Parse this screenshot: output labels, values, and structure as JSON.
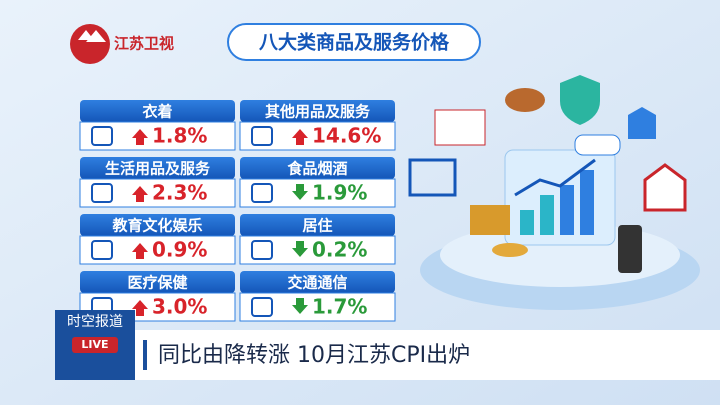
{
  "logo": "江苏卫视",
  "header": {
    "title": "八大类商品及服务价格"
  },
  "items": [
    {
      "name": "衣着",
      "value": "1.8%",
      "direction": "up"
    },
    {
      "name": "其他用品及服务",
      "value": "14.6%",
      "direction": "up"
    },
    {
      "name": "生活用品及服务",
      "value": "2.3%",
      "direction": "up"
    },
    {
      "name": "食品烟酒",
      "value": "1.9%",
      "direction": "down"
    },
    {
      "name": "教育文化娱乐",
      "value": "0.9%",
      "direction": "up"
    },
    {
      "name": "居住",
      "value": "0.2%",
      "direction": "down"
    },
    {
      "name": "医疗保健",
      "value": "3.0%",
      "direction": "up"
    },
    {
      "name": "交通通信",
      "value": "1.7%",
      "direction": "down"
    }
  ],
  "program": {
    "name": "时空报道",
    "badge": "LIVE"
  },
  "headline": "同比由降转涨  10月江苏CPI出炉"
}
